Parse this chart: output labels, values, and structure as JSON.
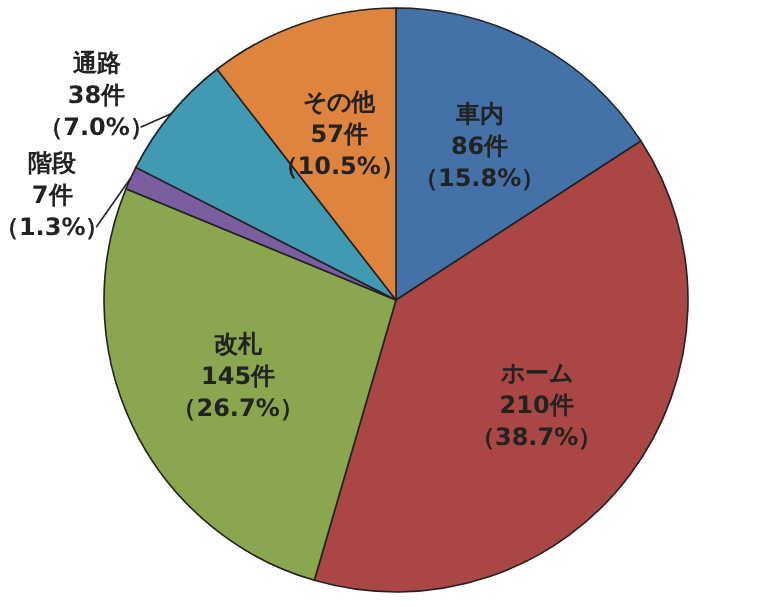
{
  "chart_data": {
    "type": "pie",
    "categories": [
      "車内",
      "ホーム",
      "改札",
      "階段",
      "通路",
      "その他"
    ],
    "values": [
      86,
      210,
      145,
      7,
      38,
      57
    ],
    "colors": [
      "#4472a8",
      "#aa4644",
      "#8aa64e",
      "#7b5ea0",
      "#4299b2",
      "#de843f"
    ],
    "value_labels": [
      "86件（15.8%）",
      "210件（38.7%）",
      "145件（26.7%）",
      "7件（1.3%）",
      "38件（7.0%）",
      "57件（10.5%）"
    ]
  }
}
